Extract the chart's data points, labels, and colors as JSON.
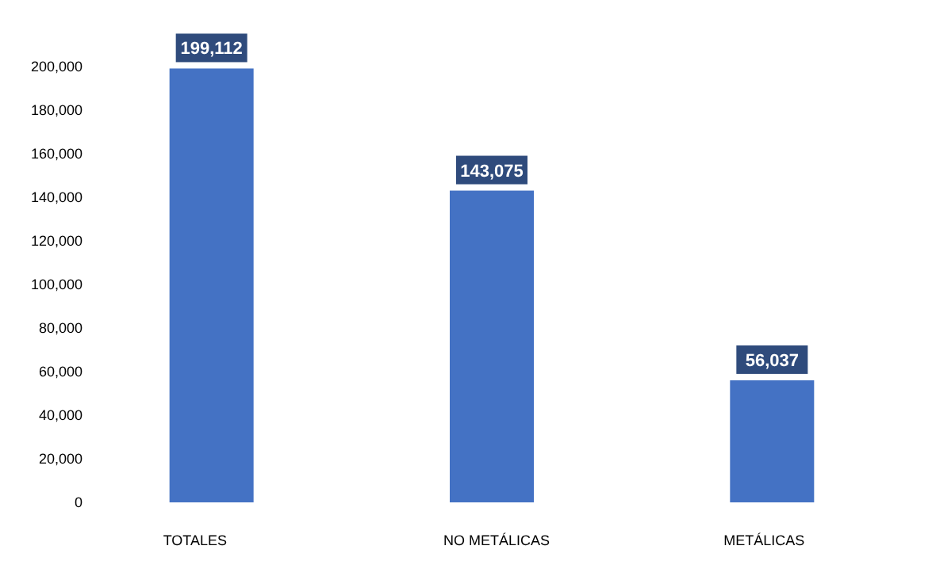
{
  "chart_data": {
    "type": "bar",
    "categories": [
      "TOTALES",
      "NO METÁLICAS",
      "METÁLICAS"
    ],
    "values": [
      199112,
      143075,
      56037
    ],
    "color": "#4472c4",
    "value_labels": [
      "199,112",
      "143,075",
      "56,037"
    ],
    "ylim": [
      0,
      200000
    ],
    "yticks": [
      0,
      {
        "value": 20000,
        "label": "20,000"
      },
      {
        "value": 40000,
        "label": "40,000"
      },
      {
        "value": 60000,
        "label": "60,000"
      },
      {
        "value": 80000,
        "label": "80,000"
      },
      {
        "value": 100000,
        "label": "100,000"
      },
      {
        "value": 120000,
        "label": "120,000"
      },
      {
        "value": 140000,
        "label": "140,000"
      },
      {
        "value": 160000,
        "label": "160,000"
      },
      {
        "value": 180000,
        "label": "180,000"
      },
      {
        "value": 200000,
        "label": "200,000"
      }
    ],
    "grid": false
  }
}
